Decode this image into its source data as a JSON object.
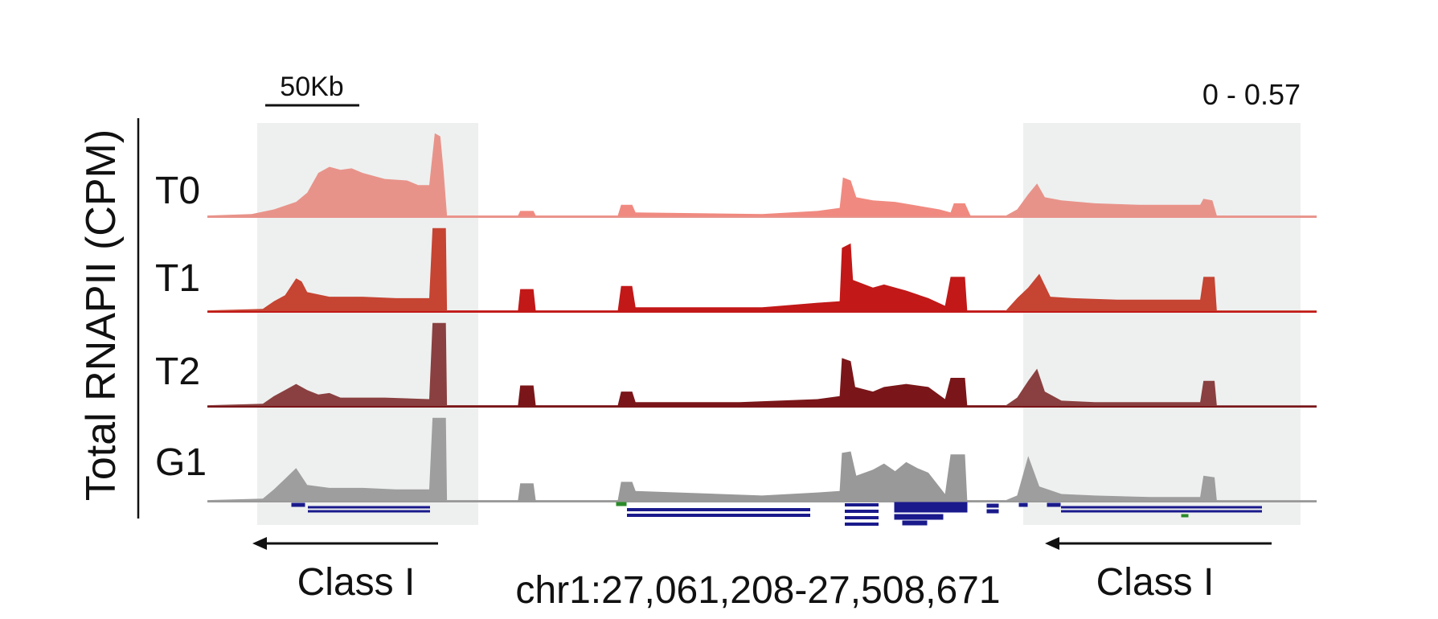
{
  "chart_data": {
    "type": "area",
    "ylabel": "Total RNAPII (CPM)",
    "range_label": "0 - 0.57",
    "ylim": [
      0,
      0.57
    ],
    "scale_bar_label": "50Kb",
    "region_label": "chr1:27,061,208-27,508,671",
    "highlight_labels": [
      "Class I",
      "Class I"
    ],
    "tracks": [
      {
        "name": "T0",
        "color": "#e8938a",
        "segments": [
          {
            "color": "#e8938a",
            "points": [
              [
                0,
                0.01
              ],
              [
                4,
                0.02
              ],
              [
                6,
                0.05
              ],
              [
                8,
                0.1
              ],
              [
                9,
                0.16
              ],
              [
                10,
                0.29
              ],
              [
                11,
                0.33
              ],
              [
                12,
                0.31
              ],
              [
                13,
                0.32
              ],
              [
                14,
                0.29
              ],
              [
                16,
                0.25
              ],
              [
                18,
                0.24
              ],
              [
                19,
                0.21
              ],
              [
                20,
                0.21
              ],
              [
                20.5,
                0.55
              ],
              [
                21,
                0.53
              ],
              [
                21.3,
                0.3
              ],
              [
                21.6,
                0.01
              ]
            ]
          },
          {
            "color": "#f08a80",
            "points": [
              [
                21.6,
                0.01
              ],
              [
                28,
                0.01
              ],
              [
                28.2,
                0.04
              ],
              [
                29.4,
                0.04
              ],
              [
                29.6,
                0.01
              ],
              [
                37,
                0.01
              ],
              [
                37.3,
                0.08
              ],
              [
                38.3,
                0.08
              ],
              [
                38.6,
                0.03
              ],
              [
                50,
                0.02
              ],
              [
                55,
                0.04
              ],
              [
                57,
                0.06
              ],
              [
                57.3,
                0.26
              ],
              [
                58,
                0.24
              ],
              [
                58.5,
                0.13
              ],
              [
                60,
                0.11
              ],
              [
                62,
                0.1
              ],
              [
                66,
                0.05
              ],
              [
                67,
                0.03
              ],
              [
                67.3,
                0.09
              ],
              [
                68.3,
                0.09
              ],
              [
                68.8,
                0.01
              ],
              [
                72,
                0.01
              ]
            ]
          },
          {
            "color": "#e8938a",
            "points": [
              [
                72,
                0.01
              ],
              [
                73,
                0.05
              ],
              [
                74,
                0.15
              ],
              [
                74.8,
                0.22
              ],
              [
                75.5,
                0.13
              ],
              [
                77,
                0.11
              ],
              [
                80,
                0.09
              ],
              [
                84,
                0.08
              ],
              [
                88,
                0.08
              ],
              [
                89.5,
                0.08
              ],
              [
                89.8,
                0.12
              ],
              [
                90.6,
                0.11
              ],
              [
                91,
                0.01
              ],
              [
                100,
                0.01
              ]
            ]
          }
        ]
      },
      {
        "name": "T1",
        "color": "#c21818",
        "segments": [
          {
            "color": "#c64432",
            "points": [
              [
                0,
                0.01
              ],
              [
                5,
                0.02
              ],
              [
                6,
                0.07
              ],
              [
                7,
                0.11
              ],
              [
                8,
                0.22
              ],
              [
                8.5,
                0.2
              ],
              [
                9,
                0.13
              ],
              [
                11,
                0.1
              ],
              [
                14,
                0.1
              ],
              [
                17,
                0.09
              ],
              [
                20,
                0.09
              ],
              [
                20.3,
                0.55
              ],
              [
                21.5,
                0.55
              ],
              [
                21.6,
                0.01
              ]
            ]
          },
          {
            "color": "#c21818",
            "points": [
              [
                21.6,
                0.01
              ],
              [
                28,
                0.01
              ],
              [
                28.2,
                0.15
              ],
              [
                29.4,
                0.15
              ],
              [
                29.6,
                0.01
              ],
              [
                37,
                0.01
              ],
              [
                37.3,
                0.17
              ],
              [
                38.3,
                0.17
              ],
              [
                38.6,
                0.03
              ],
              [
                50,
                0.03
              ],
              [
                55,
                0.06
              ],
              [
                57,
                0.07
              ],
              [
                57.2,
                0.42
              ],
              [
                58,
                0.45
              ],
              [
                58.2,
                0.21
              ],
              [
                60,
                0.16
              ],
              [
                61,
                0.18
              ],
              [
                63,
                0.14
              ],
              [
                65,
                0.09
              ],
              [
                66.5,
                0.04
              ],
              [
                67,
                0.23
              ],
              [
                68.3,
                0.23
              ],
              [
                68.5,
                0.01
              ],
              [
                72,
                0.01
              ]
            ]
          },
          {
            "color": "#c64432",
            "points": [
              [
                72,
                0.01
              ],
              [
                73,
                0.09
              ],
              [
                74,
                0.16
              ],
              [
                75,
                0.25
              ],
              [
                76,
                0.1
              ],
              [
                78,
                0.09
              ],
              [
                82,
                0.08
              ],
              [
                86,
                0.08
              ],
              [
                89.5,
                0.08
              ],
              [
                89.8,
                0.23
              ],
              [
                90.8,
                0.23
              ],
              [
                91,
                0.01
              ],
              [
                100,
                0.01
              ]
            ]
          }
        ]
      },
      {
        "name": "T2",
        "color": "#7a1619",
        "segments": [
          {
            "color": "#8a4040",
            "points": [
              [
                0,
                0.01
              ],
              [
                5,
                0.02
              ],
              [
                6,
                0.07
              ],
              [
                7,
                0.11
              ],
              [
                8,
                0.15
              ],
              [
                9,
                0.11
              ],
              [
                10,
                0.08
              ],
              [
                11,
                0.09
              ],
              [
                12,
                0.06
              ],
              [
                16,
                0.06
              ],
              [
                20,
                0.05
              ],
              [
                20.3,
                0.55
              ],
              [
                21.5,
                0.55
              ],
              [
                21.6,
                0.01
              ]
            ]
          },
          {
            "color": "#7a1619",
            "points": [
              [
                21.6,
                0.01
              ],
              [
                28,
                0.01
              ],
              [
                28.2,
                0.14
              ],
              [
                29.4,
                0.14
              ],
              [
                29.6,
                0.01
              ],
              [
                37,
                0.01
              ],
              [
                37.3,
                0.1
              ],
              [
                38.3,
                0.1
              ],
              [
                38.6,
                0.03
              ],
              [
                48,
                0.03
              ],
              [
                55,
                0.05
              ],
              [
                57,
                0.07
              ],
              [
                57.2,
                0.32
              ],
              [
                58,
                0.3
              ],
              [
                58.4,
                0.13
              ],
              [
                60,
                0.1
              ],
              [
                61,
                0.13
              ],
              [
                63,
                0.15
              ],
              [
                65,
                0.13
              ],
              [
                66.5,
                0.05
              ],
              [
                67,
                0.19
              ],
              [
                68.3,
                0.19
              ],
              [
                68.5,
                0.01
              ],
              [
                72,
                0.01
              ]
            ]
          },
          {
            "color": "#8a4040",
            "points": [
              [
                72,
                0.01
              ],
              [
                73,
                0.06
              ],
              [
                74,
                0.17
              ],
              [
                74.8,
                0.25
              ],
              [
                75.5,
                0.1
              ],
              [
                77,
                0.04
              ],
              [
                80,
                0.03
              ],
              [
                85,
                0.03
              ],
              [
                89.5,
                0.03
              ],
              [
                89.8,
                0.17
              ],
              [
                90.8,
                0.17
              ],
              [
                91,
                0.01
              ],
              [
                100,
                0.01
              ]
            ]
          }
        ]
      },
      {
        "name": "G1",
        "color": "#999999",
        "segments": [
          {
            "color": "#9e9e9e",
            "points": [
              [
                0,
                0.01
              ],
              [
                5,
                0.02
              ],
              [
                6,
                0.08
              ],
              [
                7,
                0.15
              ],
              [
                8,
                0.22
              ],
              [
                9,
                0.11
              ],
              [
                11,
                0.09
              ],
              [
                14,
                0.09
              ],
              [
                17,
                0.08
              ],
              [
                20,
                0.08
              ],
              [
                20.3,
                0.55
              ],
              [
                21.5,
                0.55
              ],
              [
                21.6,
                0.01
              ]
            ]
          },
          {
            "color": "#999999",
            "points": [
              [
                21.6,
                0.01
              ],
              [
                28,
                0.01
              ],
              [
                28.2,
                0.12
              ],
              [
                29.4,
                0.12
              ],
              [
                29.6,
                0.01
              ],
              [
                37,
                0.01
              ],
              [
                37.3,
                0.13
              ],
              [
                38.3,
                0.13
              ],
              [
                38.6,
                0.07
              ],
              [
                50,
                0.04
              ],
              [
                55,
                0.06
              ],
              [
                57,
                0.07
              ],
              [
                57.2,
                0.32
              ],
              [
                58,
                0.33
              ],
              [
                58.5,
                0.17
              ],
              [
                60,
                0.21
              ],
              [
                61,
                0.25
              ],
              [
                62,
                0.2
              ],
              [
                63,
                0.26
              ],
              [
                64,
                0.22
              ],
              [
                65,
                0.19
              ],
              [
                66.5,
                0.05
              ],
              [
                67,
                0.31
              ],
              [
                68.3,
                0.31
              ],
              [
                68.5,
                0.01
              ],
              [
                72,
                0.01
              ]
            ]
          },
          {
            "color": "#9e9e9e",
            "points": [
              [
                72,
                0.01
              ],
              [
                73,
                0.04
              ],
              [
                74,
                0.3
              ],
              [
                75,
                0.1
              ],
              [
                77,
                0.05
              ],
              [
                80,
                0.04
              ],
              [
                85,
                0.03
              ],
              [
                89.5,
                0.03
              ],
              [
                89.8,
                0.17
              ],
              [
                90.8,
                0.16
              ],
              [
                91,
                0.01
              ],
              [
                100,
                0.01
              ]
            ]
          }
        ]
      }
    ],
    "gene_annotation_color": "#1a1a8c"
  }
}
